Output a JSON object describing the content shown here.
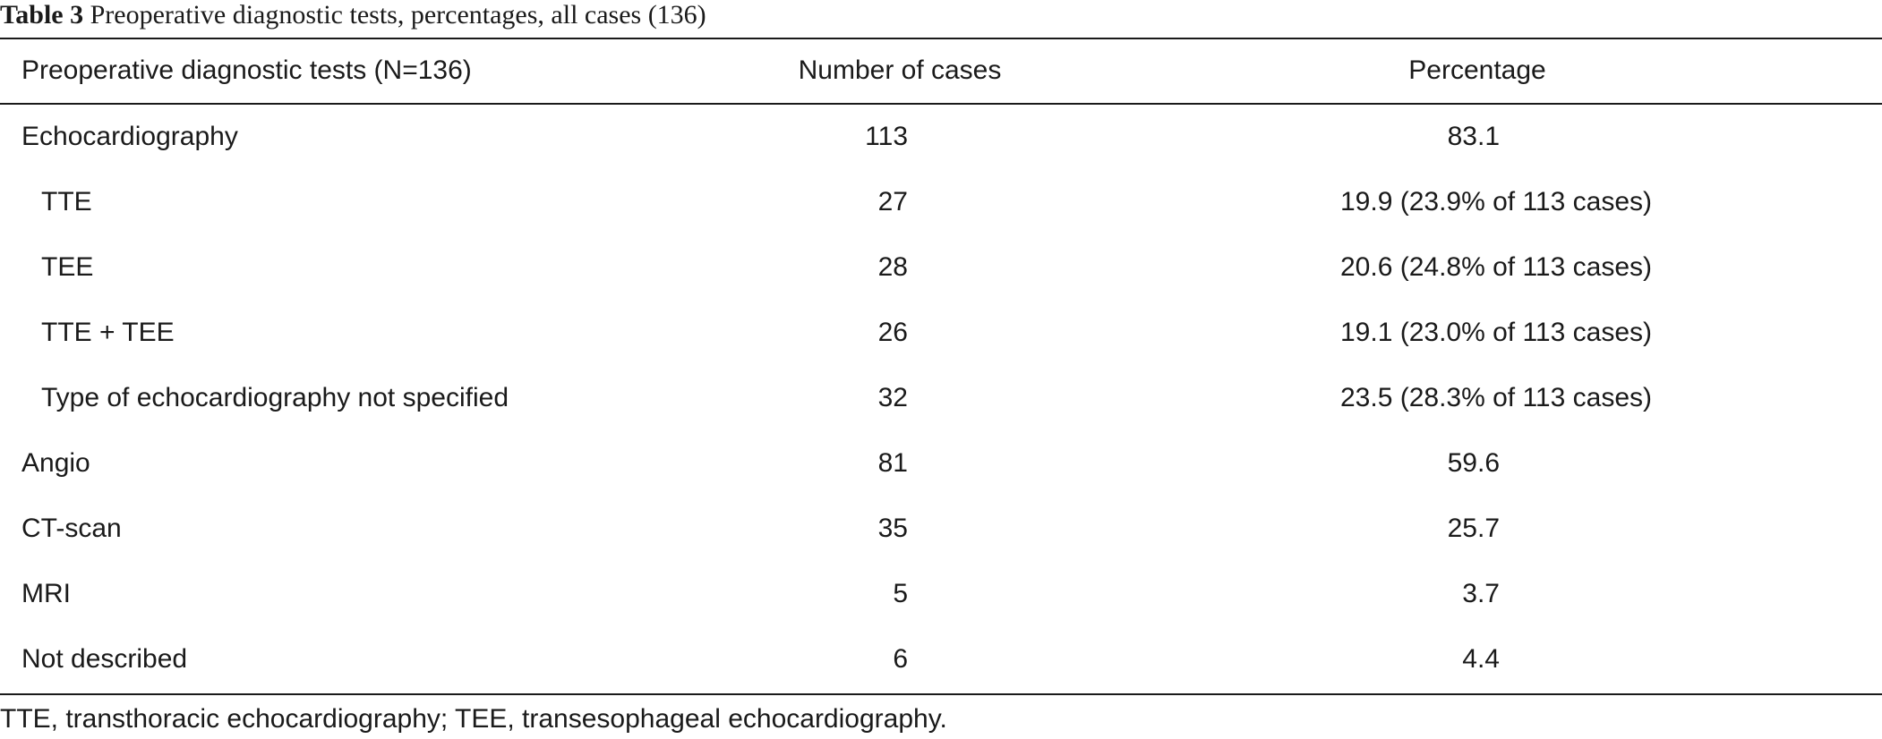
{
  "caption": {
    "label": "Table 3",
    "text": " Preoperative diagnostic tests, percentages, all cases (136)"
  },
  "table": {
    "headers": {
      "test": "Preoperative diagnostic tests (N=136)",
      "count": "Number of cases",
      "percentage": "Percentage"
    },
    "rows": [
      {
        "test": "Echocardiography",
        "count": "113",
        "percentage": "83.1",
        "indent": false,
        "detail": false
      },
      {
        "test": "TTE",
        "count": "27",
        "percentage": "19.9 (23.9% of 113 cases)",
        "indent": true,
        "detail": true
      },
      {
        "test": "TEE",
        "count": "28",
        "percentage": "20.6 (24.8% of 113 cases)",
        "indent": true,
        "detail": true
      },
      {
        "test": "TTE + TEE",
        "count": "26",
        "percentage": "19.1 (23.0% of 113 cases)",
        "indent": true,
        "detail": true
      },
      {
        "test": "Type of echocardiography not specified",
        "count": "32",
        "percentage": "23.5 (28.3% of 113 cases)",
        "indent": true,
        "detail": true
      },
      {
        "test": "Angio",
        "count": "81",
        "percentage": "59.6",
        "indent": false,
        "detail": false
      },
      {
        "test": "CT-scan",
        "count": "35",
        "percentage": "25.7",
        "indent": false,
        "detail": false
      },
      {
        "test": "MRI",
        "count": "5",
        "percentage": "3.7",
        "indent": false,
        "detail": false
      },
      {
        "test": "Not described",
        "count": "6",
        "percentage": "4.4",
        "indent": false,
        "detail": false
      }
    ]
  },
  "footnote": "TTE, transthoracic echocardiography; TEE, transesophageal echocardiography."
}
